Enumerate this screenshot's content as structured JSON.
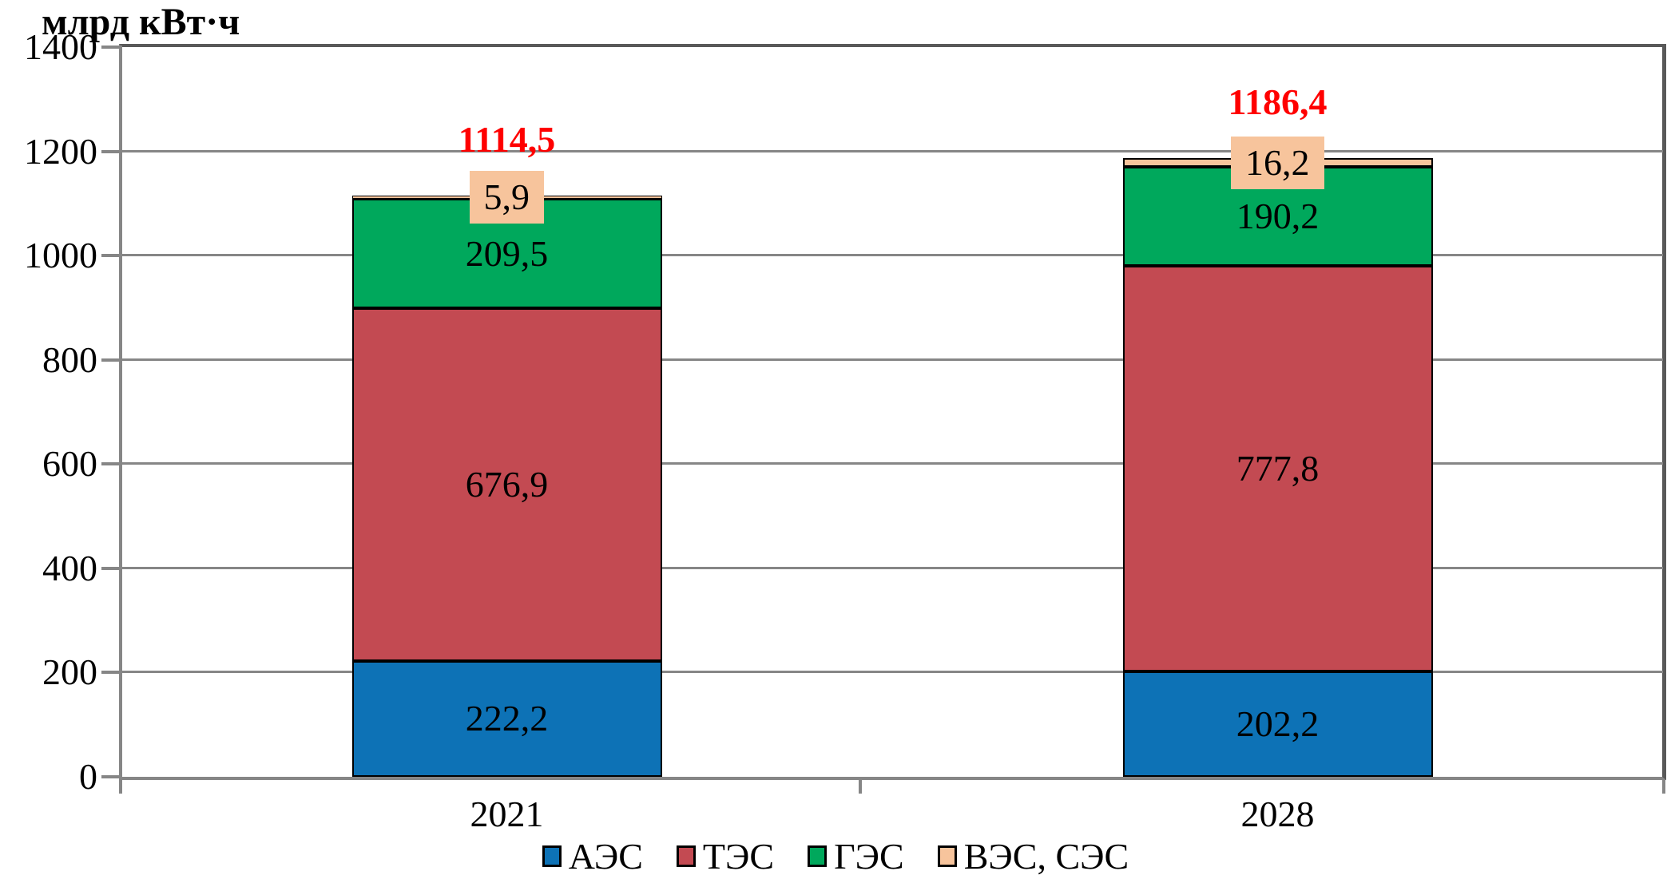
{
  "chart_data": {
    "type": "bar",
    "stacked": true,
    "title": "",
    "ylabel": "млрд кВт·ч",
    "xlabel": "",
    "categories": [
      "2021",
      "2028"
    ],
    "series": [
      {
        "name": "АЭС",
        "color": "#0D72B6",
        "values": [
          222.2,
          202.2
        ],
        "labels": [
          "222,2",
          "202,2"
        ],
        "callout": false
      },
      {
        "name": "ТЭС",
        "color": "#C34A52",
        "values": [
          676.9,
          777.8
        ],
        "labels": [
          "676,9",
          "777,8"
        ],
        "callout": false
      },
      {
        "name": "ГЭС",
        "color": "#00A85C",
        "values": [
          209.5,
          190.2
        ],
        "labels": [
          "209,5",
          "190,2"
        ],
        "callout": false
      },
      {
        "name": "ВЭС, СЭС",
        "color": "#F7C49C",
        "values": [
          5.9,
          16.2
        ],
        "labels": [
          "5,9",
          "16,2"
        ],
        "callout": true
      }
    ],
    "totals": {
      "values": [
        1114.5,
        1186.4
      ],
      "labels": [
        "1114,5",
        "1186,4"
      ],
      "color": "#FF0000"
    },
    "ylim": [
      0,
      1400
    ],
    "ytick_step": 200,
    "yticks": [
      "0",
      "200",
      "400",
      "600",
      "800",
      "1000",
      "1200",
      "1400"
    ],
    "grid": true,
    "legend_position": "bottom",
    "colors": {
      "gridline": "#868686",
      "plot_border": "#595959",
      "label_text": "#000000",
      "total_text": "#FF0000"
    }
  }
}
